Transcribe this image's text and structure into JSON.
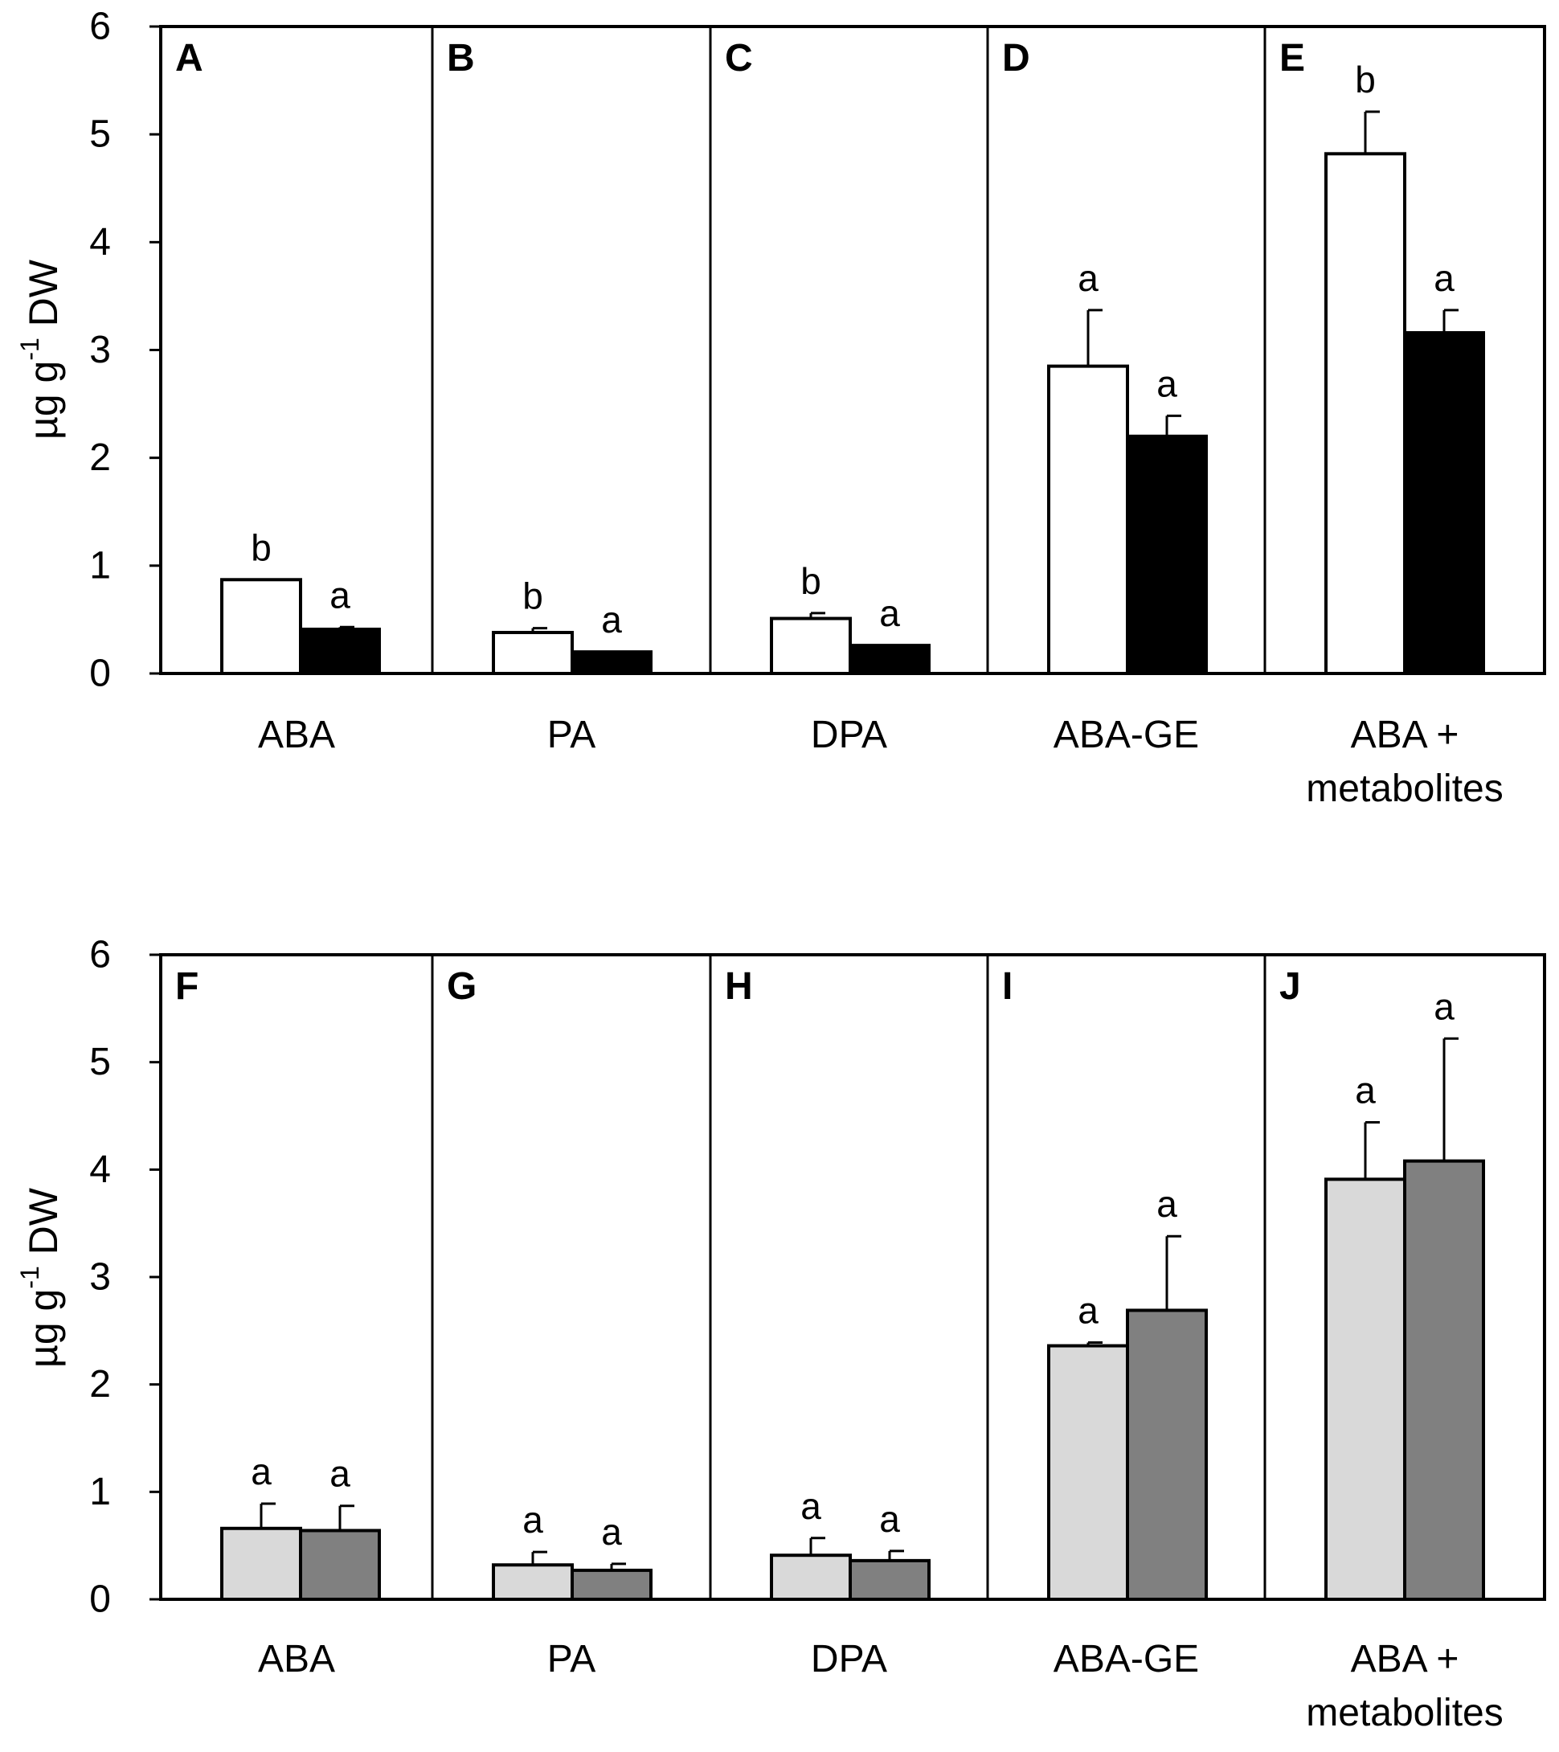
{
  "chart_data": [
    {
      "type": "bar",
      "title": "",
      "ylabel": "µg g-1 DW",
      "ylabel_parts": {
        "base": "µg g",
        "sup": "-1",
        "rest": " DW"
      },
      "ylim": [
        0,
        6
      ],
      "yticks": [
        0,
        1,
        2,
        3,
        4,
        5,
        6
      ],
      "colors": [
        "#ffffff",
        "#000000"
      ],
      "panels": [
        {
          "letter": "A",
          "category": [
            "ABA"
          ],
          "values": [
            0.87,
            0.41
          ],
          "errors": [
            0,
            0.02
          ],
          "sig": [
            "b",
            "a"
          ]
        },
        {
          "letter": "B",
          "category": [
            "PA"
          ],
          "values": [
            0.38,
            0.2
          ],
          "errors": [
            0.04,
            0
          ],
          "sig": [
            "b",
            "a"
          ]
        },
        {
          "letter": "C",
          "category": [
            "DPA"
          ],
          "values": [
            0.51,
            0.26
          ],
          "errors": [
            0.05,
            0
          ],
          "sig": [
            "b",
            "a"
          ]
        },
        {
          "letter": "D",
          "category": [
            "ABA-GE"
          ],
          "values": [
            2.85,
            2.2
          ],
          "errors": [
            0.52,
            0.19
          ],
          "sig": [
            "a",
            "a"
          ]
        },
        {
          "letter": "E",
          "category": [
            "ABA +",
            "metabolites"
          ],
          "values": [
            4.82,
            3.16
          ],
          "errors": [
            0.39,
            0.21
          ],
          "sig": [
            "b",
            "a"
          ]
        }
      ]
    },
    {
      "type": "bar",
      "title": "",
      "ylabel": "µg g-1 DW",
      "ylabel_parts": {
        "base": "µg g",
        "sup": "-1",
        "rest": " DW"
      },
      "ylim": [
        0,
        6
      ],
      "yticks": [
        0,
        1,
        2,
        3,
        4,
        5,
        6
      ],
      "colors": [
        "#d9d9d9",
        "#808080"
      ],
      "panels": [
        {
          "letter": "F",
          "category": [
            "ABA"
          ],
          "values": [
            0.66,
            0.64
          ],
          "errors": [
            0.23,
            0.23
          ],
          "sig": [
            "a",
            "a"
          ]
        },
        {
          "letter": "G",
          "category": [
            "PA"
          ],
          "values": [
            0.32,
            0.27
          ],
          "errors": [
            0.12,
            0.06
          ],
          "sig": [
            "a",
            "a"
          ]
        },
        {
          "letter": "H",
          "category": [
            "DPA"
          ],
          "values": [
            0.41,
            0.36
          ],
          "errors": [
            0.16,
            0.09
          ],
          "sig": [
            "a",
            "a"
          ]
        },
        {
          "letter": "I",
          "category": [
            "ABA-GE"
          ],
          "values": [
            2.36,
            2.69
          ],
          "errors": [
            0.03,
            0.69
          ],
          "sig": [
            "a",
            "a"
          ]
        },
        {
          "letter": "J",
          "category": [
            "ABA +",
            "metabolites"
          ],
          "values": [
            3.91,
            4.08
          ],
          "errors": [
            0.53,
            1.14
          ],
          "sig": [
            "a",
            "a"
          ]
        }
      ]
    }
  ]
}
